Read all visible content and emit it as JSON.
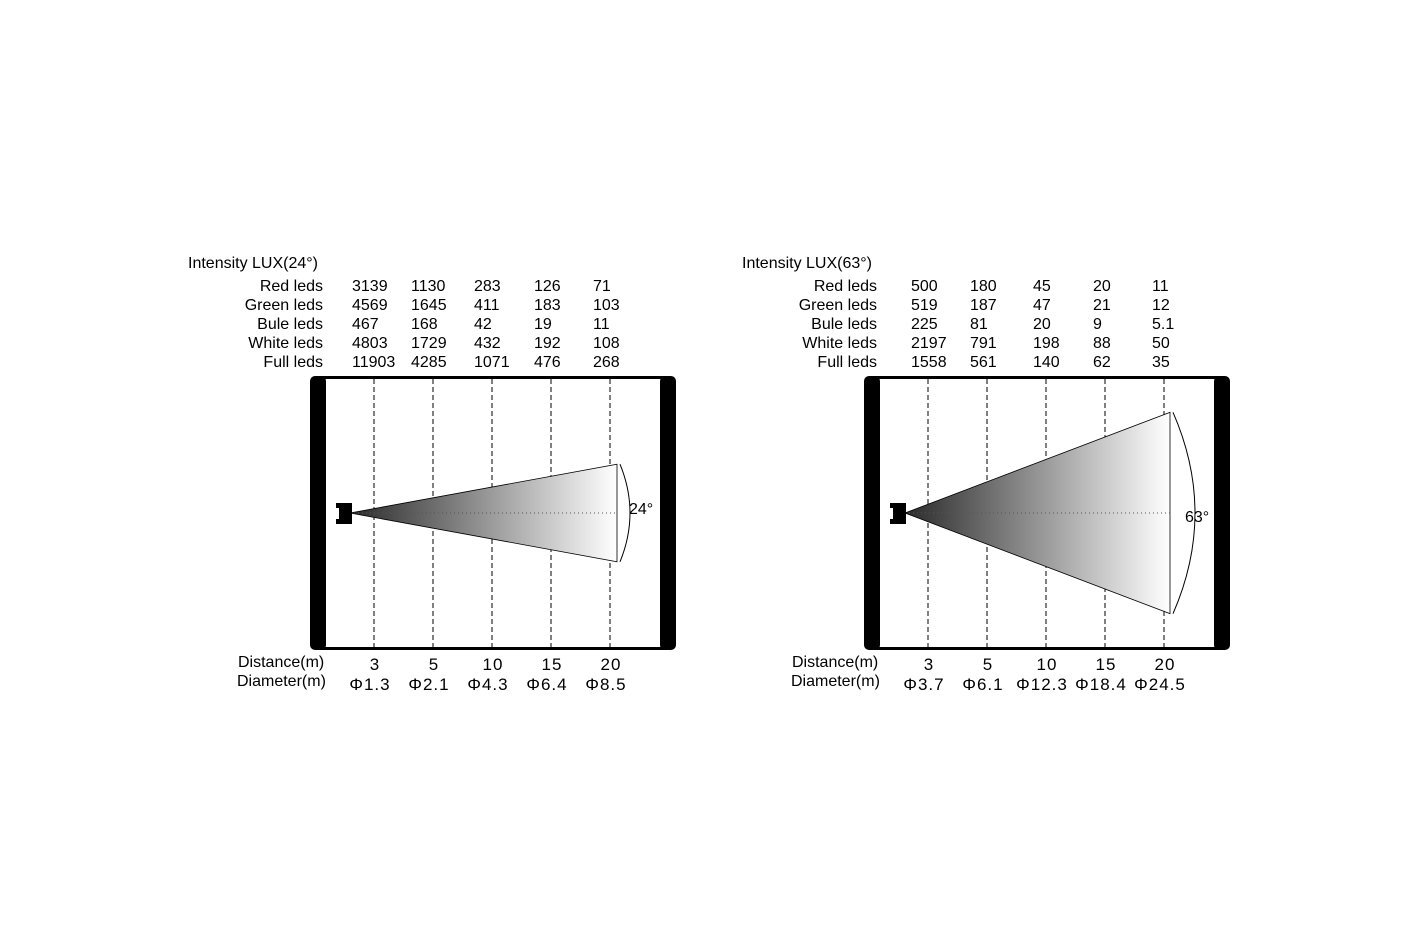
{
  "panels": [
    {
      "title": "Intensity LUX(24°)",
      "beam_angle_label": "24°",
      "beam_angle_deg": 24,
      "row_labels": [
        "Red leds",
        "Green leds",
        "Bule leds",
        "White leds",
        "Full leds"
      ],
      "rows": [
        [
          "3139",
          "1130",
          "283",
          "126",
          "71"
        ],
        [
          "4569",
          "1645",
          "411",
          "183",
          "103"
        ],
        [
          "467",
          "168",
          "42",
          "19",
          "11"
        ],
        [
          "4803",
          "1729",
          "432",
          "192",
          "108"
        ],
        [
          "11903",
          "4285",
          "1071",
          "476",
          "268"
        ]
      ],
      "distance_label": "Distance(m)",
      "diameter_label": "Diameter(m)",
      "distances": [
        "3",
        "5",
        "10",
        "15",
        "20"
      ],
      "diameters": [
        "Φ1.3",
        "Φ2.1",
        "Φ4.3",
        "Φ6.4",
        "Φ8.5"
      ]
    },
    {
      "title": "Intensity LUX(63°)",
      "beam_angle_label": "63°",
      "beam_angle_deg": 63,
      "row_labels": [
        "Red leds",
        "Green leds",
        "Bule leds",
        "White leds",
        "Full leds"
      ],
      "rows": [
        [
          "500",
          "180",
          "45",
          "20",
          "11"
        ],
        [
          "519",
          "187",
          "47",
          "21",
          "12"
        ],
        [
          "225",
          "81",
          "20",
          "9",
          "5.1"
        ],
        [
          "2197",
          "791",
          "198",
          "88",
          "50"
        ],
        [
          "1558",
          "561",
          "140",
          "62",
          "35"
        ]
      ],
      "distance_label": "Distance(m)",
      "diameter_label": "Diameter(m)",
      "distances": [
        "3",
        "5",
        "10",
        "15",
        "20"
      ],
      "diameters": [
        "Φ3.7",
        "Φ6.1",
        "Φ12.3",
        "Φ18.4",
        "Φ24.5"
      ]
    }
  ]
}
